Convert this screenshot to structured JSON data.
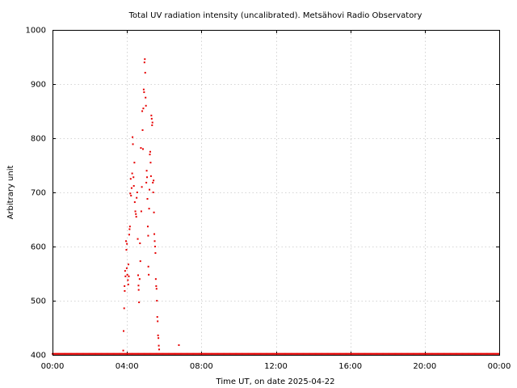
{
  "chart_data": {
    "type": "scatter",
    "title": "Total UV radiation intensity (uncalibrated). Metsähovi Radio Observatory",
    "xlabel": "Time UT, on date 2025-04-22",
    "ylabel": "Arbitrary unit",
    "x_unit": "hours UT",
    "xlim": [
      0,
      24
    ],
    "ylim": [
      400,
      1000
    ],
    "x_ticks": [
      0,
      4,
      8,
      12,
      16,
      20,
      24
    ],
    "x_tick_labels": [
      "00:00",
      "04:00",
      "08:00",
      "12:00",
      "16:00",
      "20:00",
      "00:00"
    ],
    "y_ticks": [
      400,
      500,
      600,
      700,
      800,
      900,
      1000
    ],
    "y_tick_labels": [
      "400",
      "500",
      "600",
      "700",
      "800",
      "900",
      "1000"
    ],
    "grid": true,
    "legend": "none",
    "marker_color": "#e60000",
    "baseline": {
      "y": 401,
      "x_start": 0,
      "x_end": 24,
      "step": 0.05
    },
    "points": [
      [
        3.8,
        408
      ],
      [
        3.82,
        444
      ],
      [
        3.85,
        486
      ],
      [
        3.87,
        527
      ],
      [
        3.88,
        518
      ],
      [
        3.9,
        555
      ],
      [
        3.92,
        545
      ],
      [
        3.95,
        610
      ],
      [
        3.97,
        594
      ],
      [
        3.99,
        560
      ],
      [
        4.0,
        605
      ],
      [
        4.02,
        548
      ],
      [
        4.05,
        538
      ],
      [
        4.07,
        530
      ],
      [
        4.08,
        567
      ],
      [
        4.1,
        545
      ],
      [
        4.12,
        622
      ],
      [
        4.14,
        632
      ],
      [
        4.16,
        637
      ],
      [
        4.18,
        698
      ],
      [
        4.2,
        725
      ],
      [
        4.22,
        694
      ],
      [
        4.25,
        708
      ],
      [
        4.28,
        735
      ],
      [
        4.3,
        802
      ],
      [
        4.32,
        789
      ],
      [
        4.35,
        728
      ],
      [
        4.37,
        712
      ],
      [
        4.4,
        755
      ],
      [
        4.42,
        682
      ],
      [
        4.45,
        665
      ],
      [
        4.48,
        660
      ],
      [
        4.5,
        655
      ],
      [
        4.52,
        690
      ],
      [
        4.55,
        700
      ],
      [
        4.58,
        614
      ],
      [
        4.6,
        547
      ],
      [
        4.62,
        528
      ],
      [
        4.63,
        520
      ],
      [
        4.65,
        497
      ],
      [
        4.68,
        540
      ],
      [
        4.7,
        606
      ],
      [
        4.72,
        573
      ],
      [
        4.75,
        782
      ],
      [
        4.77,
        665
      ],
      [
        4.8,
        710
      ],
      [
        4.82,
        850
      ],
      [
        4.84,
        815
      ],
      [
        4.86,
        780
      ],
      [
        4.88,
        855
      ],
      [
        4.9,
        890
      ],
      [
        4.92,
        885
      ],
      [
        4.94,
        940
      ],
      [
        4.96,
        946
      ],
      [
        4.98,
        921
      ],
      [
        5.0,
        875
      ],
      [
        5.02,
        860
      ],
      [
        5.04,
        718
      ],
      [
        5.06,
        740
      ],
      [
        5.08,
        728
      ],
      [
        5.1,
        688
      ],
      [
        5.12,
        637
      ],
      [
        5.14,
        620
      ],
      [
        5.15,
        563
      ],
      [
        5.17,
        548
      ],
      [
        5.19,
        670
      ],
      [
        5.21,
        705
      ],
      [
        5.23,
        770
      ],
      [
        5.25,
        775
      ],
      [
        5.27,
        755
      ],
      [
        5.29,
        730
      ],
      [
        5.31,
        842
      ],
      [
        5.33,
        836
      ],
      [
        5.35,
        824
      ],
      [
        5.37,
        829
      ],
      [
        5.39,
        718
      ],
      [
        5.41,
        700
      ],
      [
        5.43,
        722
      ],
      [
        5.45,
        663
      ],
      [
        5.47,
        623
      ],
      [
        5.49,
        610
      ],
      [
        5.51,
        600
      ],
      [
        5.53,
        588
      ],
      [
        5.55,
        540
      ],
      [
        5.57,
        527
      ],
      [
        5.59,
        522
      ],
      [
        5.61,
        500
      ],
      [
        5.63,
        470
      ],
      [
        5.65,
        462
      ],
      [
        5.67,
        436
      ],
      [
        5.69,
        431
      ],
      [
        5.71,
        417
      ],
      [
        5.73,
        410
      ],
      [
        6.79,
        418
      ]
    ]
  }
}
